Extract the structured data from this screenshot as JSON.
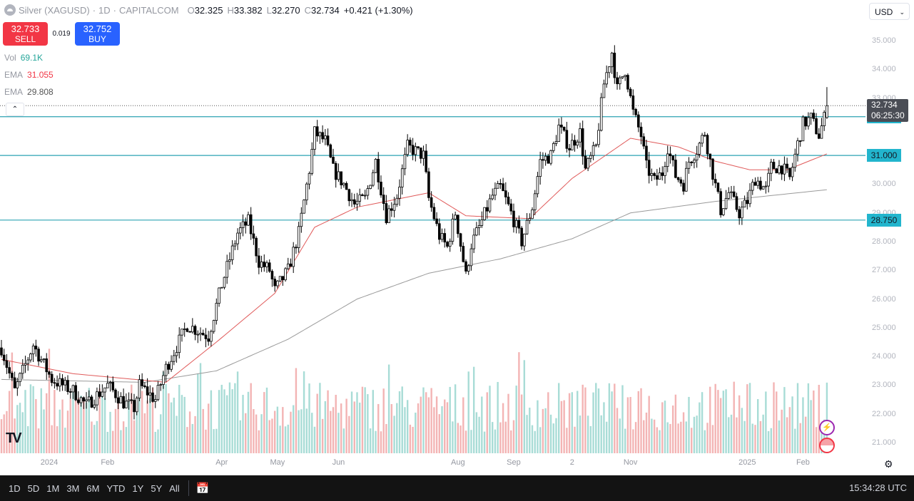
{
  "header": {
    "symbol": "Silver (XAGUSD)",
    "interval": "1D",
    "exchange": "CAPITALCOM",
    "sep": "·",
    "ohlc": {
      "o_label": "O",
      "o": "32.325",
      "h_label": "H",
      "h": "33.382",
      "l_label": "L",
      "l": "32.270",
      "c_label": "C",
      "c": "32.734",
      "change": "+0.421 (+1.30%)"
    }
  },
  "trade": {
    "sell_price": "32.733",
    "sell_label": "SELL",
    "spread": "0.019",
    "buy_price": "32.752",
    "buy_label": "BUY"
  },
  "indicators": [
    {
      "name": "Vol",
      "value": "69.1K",
      "color": "#26a69a"
    },
    {
      "name": "EMA",
      "value": "31.055",
      "color": "#f23645"
    },
    {
      "name": "EMA",
      "value": "29.808",
      "color": "#555555"
    }
  ],
  "collapse_icon": "chevron-up-icon",
  "currency": "USD",
  "last_price": {
    "price": "32.734",
    "countdown": "06:25:30"
  },
  "horizontal_lines": [
    {
      "label": "32.350",
      "value": 32.35
    },
    {
      "label": "31.000",
      "value": 31.0
    },
    {
      "label": "28.750",
      "value": 28.75
    }
  ],
  "bottom_bar": {
    "ranges": [
      "1D",
      "5D",
      "1M",
      "3M",
      "6M",
      "YTD",
      "1Y",
      "5Y",
      "All"
    ],
    "clock": "15:34:28 UTC"
  },
  "colors": {
    "line": "#2ba3b3",
    "ema_fast": "#e05a5a",
    "ema_slow": "#9a9a9a",
    "vol_up": "#a8dcd6",
    "vol_down": "#f3b4b4"
  },
  "chart_data": {
    "type": "candlestick",
    "title": "Silver (XAGUSD) · 1D · CAPITALCOM",
    "ylim": [
      20.5,
      35.9
    ],
    "y_ticks": [
      "35.000",
      "34.000",
      "33.000",
      "30.000",
      "29.000",
      "28.000",
      "27.000",
      "26.000",
      "25.000",
      "24.000",
      "23.000",
      "22.000",
      "21.000"
    ],
    "y_tick_values": [
      35,
      34,
      33,
      30,
      29,
      28,
      27,
      26,
      25,
      24,
      23,
      22,
      21
    ],
    "x_ticks": [
      {
        "label": "2024",
        "bar": 18
      },
      {
        "label": "Feb",
        "bar": 40
      },
      {
        "label": "Apr",
        "bar": 83
      },
      {
        "label": "May",
        "bar": 104
      },
      {
        "label": "Jun",
        "bar": 127
      },
      {
        "label": "Aug",
        "bar": 172
      },
      {
        "label": "Sep",
        "bar": 193
      },
      {
        "label": "2",
        "bar": 215
      },
      {
        "label": "Nov",
        "bar": 237
      },
      {
        "label": "2025",
        "bar": 281
      },
      {
        "label": "Feb",
        "bar": 302
      }
    ],
    "bar_count": 312,
    "close_path": [
      [
        0,
        24.3
      ],
      [
        5,
        22.8
      ],
      [
        12,
        24.4
      ],
      [
        19,
        23.2
      ],
      [
        27,
        22.8
      ],
      [
        32,
        22.3
      ],
      [
        40,
        23.0
      ],
      [
        46,
        22.4
      ],
      [
        50,
        22.2
      ],
      [
        52,
        23.0
      ],
      [
        58,
        22.5
      ],
      [
        62,
        23.6
      ],
      [
        70,
        25.1
      ],
      [
        78,
        24.7
      ],
      [
        83,
        26.5
      ],
      [
        89,
        28.3
      ],
      [
        93,
        28.7
      ],
      [
        97,
        27.3
      ],
      [
        101,
        27.0
      ],
      [
        103,
        26.3
      ],
      [
        108,
        27.0
      ],
      [
        112,
        28.3
      ],
      [
        116,
        30.5
      ],
      [
        118,
        31.8
      ],
      [
        122,
        31.5
      ],
      [
        125,
        30.5
      ],
      [
        129,
        30.0
      ],
      [
        133,
        29.3
      ],
      [
        137,
        29.5
      ],
      [
        141,
        30.8
      ],
      [
        145,
        28.9
      ],
      [
        149,
        29.6
      ],
      [
        153,
        31.3
      ],
      [
        159,
        31.0
      ],
      [
        161,
        29.5
      ],
      [
        165,
        28.2
      ],
      [
        168,
        27.8
      ],
      [
        171,
        29.0
      ],
      [
        175,
        26.8
      ],
      [
        177,
        27.9
      ],
      [
        180,
        28.5
      ],
      [
        185,
        29.6
      ],
      [
        188,
        29.9
      ],
      [
        192,
        29.0
      ],
      [
        196,
        28.0
      ],
      [
        200,
        29.2
      ],
      [
        203,
        30.8
      ],
      [
        207,
        31.0
      ],
      [
        210,
        32.0
      ],
      [
        214,
        31.3
      ],
      [
        218,
        31.8
      ],
      [
        220,
        30.5
      ],
      [
        224,
        31.3
      ],
      [
        227,
        33.5
      ],
      [
        230,
        34.6
      ],
      [
        232,
        33.3
      ],
      [
        235,
        34.0
      ],
      [
        238,
        32.5
      ],
      [
        241,
        31.7
      ],
      [
        243,
        30.6
      ],
      [
        246,
        30.1
      ],
      [
        249,
        30.4
      ],
      [
        251,
        31.3
      ],
      [
        254,
        30.3
      ],
      [
        257,
        30.0
      ],
      [
        259,
        30.8
      ],
      [
        262,
        31.2
      ],
      [
        265,
        31.8
      ],
      [
        267,
        30.8
      ],
      [
        271,
        29.1
      ],
      [
        274,
        29.7
      ],
      [
        278,
        29.0
      ],
      [
        281,
        29.4
      ],
      [
        284,
        30.2
      ],
      [
        288,
        29.8
      ],
      [
        290,
        30.6
      ],
      [
        294,
        30.6
      ],
      [
        297,
        30.2
      ],
      [
        300,
        31.4
      ],
      [
        302,
        32.1
      ],
      [
        305,
        32.3
      ],
      [
        308,
        31.7
      ],
      [
        310,
        32.3
      ],
      [
        311,
        32.734
      ]
    ],
    "last_bar": {
      "open": 32.325,
      "high": 33.382,
      "low": 32.27,
      "close": 32.734,
      "volume": "69.1K"
    },
    "ema_fast_path": [
      [
        0,
        23.9
      ],
      [
        27,
        23.4
      ],
      [
        62,
        23.1
      ],
      [
        81,
        24.5
      ],
      [
        103,
        26.2
      ],
      [
        118,
        28.5
      ],
      [
        134,
        29.2
      ],
      [
        161,
        29.7
      ],
      [
        175,
        28.9
      ],
      [
        199,
        28.8
      ],
      [
        215,
        30.2
      ],
      [
        237,
        31.6
      ],
      [
        255,
        31.3
      ],
      [
        269,
        30.8
      ],
      [
        282,
        30.5
      ],
      [
        296,
        30.5
      ],
      [
        311,
        31.055
      ]
    ],
    "ema_slow_path": [
      [
        0,
        23.2
      ],
      [
        54,
        23.1
      ],
      [
        81,
        23.5
      ],
      [
        108,
        24.6
      ],
      [
        134,
        26.0
      ],
      [
        161,
        26.9
      ],
      [
        188,
        27.4
      ],
      [
        215,
        28.1
      ],
      [
        237,
        29.0
      ],
      [
        269,
        29.4
      ],
      [
        311,
        29.808
      ]
    ]
  }
}
